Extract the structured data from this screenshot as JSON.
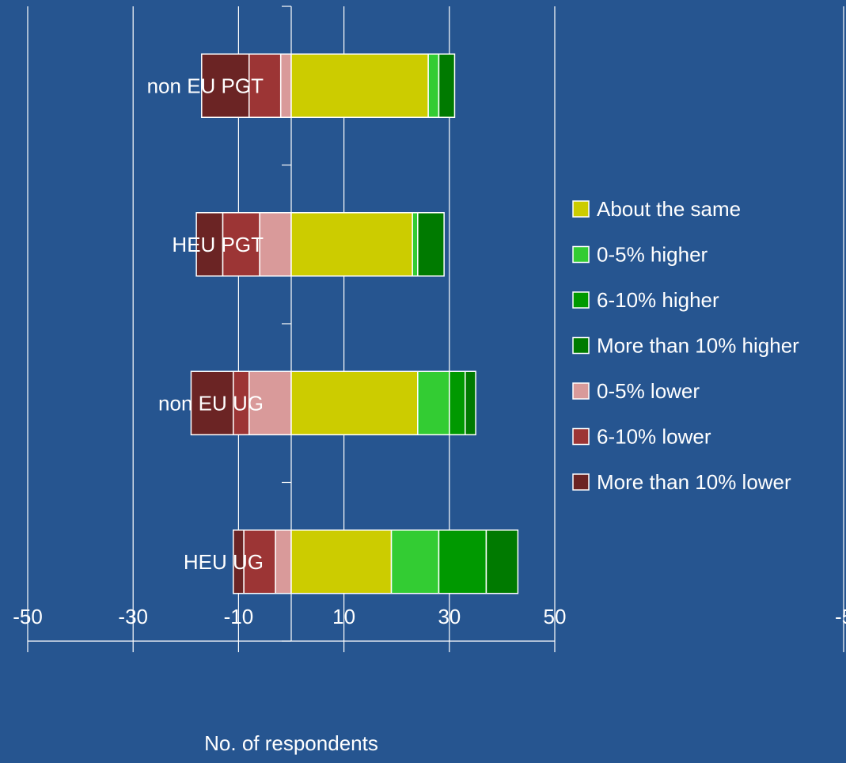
{
  "chart_data": {
    "type": "bar",
    "orientation": "horizontal",
    "stacked": "diverging",
    "title": "",
    "xlabel": "No. of respondents",
    "ylabel": "",
    "xlim": [
      -50,
      50
    ],
    "x_ticks": [
      -50,
      -30,
      -10,
      10,
      30,
      50
    ],
    "x_tick_labels": [
      "-50",
      "-30",
      "-10",
      "10",
      "30",
      "50"
    ],
    "grid": "vertical",
    "legend_position": "right",
    "categories": [
      "non EU PGT",
      "HEU PGT",
      "non EU UG",
      "HEU UG"
    ],
    "series": [
      {
        "name": "More than 10% lower",
        "color": "#6b2424",
        "values": [
          -9,
          -5,
          -8,
          -2
        ]
      },
      {
        "name": "6-10% lower",
        "color": "#9c3535",
        "values": [
          -6,
          -7,
          -3,
          -6
        ]
      },
      {
        "name": "0-5% lower",
        "color": "#d99a9a",
        "values": [
          -2,
          -6,
          -8,
          -3
        ]
      },
      {
        "name": "About the same",
        "color": "#cccc00",
        "values": [
          26,
          23,
          24,
          19
        ]
      },
      {
        "name": "0-5% higher",
        "color": "#33cc33",
        "values": [
          2,
          1,
          6,
          9
        ]
      },
      {
        "name": "6-10% higher",
        "color": "#009900",
        "values": [
          0,
          0,
          3,
          9
        ]
      },
      {
        "name": "More than 10% higher",
        "color": "#007a00",
        "values": [
          3,
          5,
          2,
          6
        ]
      }
    ],
    "legend_order": [
      "About the same",
      "0-5% higher",
      "6-10% higher",
      "More than 10% higher",
      "0-5% lower",
      "6-10% lower",
      "More than 10% lower"
    ],
    "right_edge_fragment": "-5"
  }
}
